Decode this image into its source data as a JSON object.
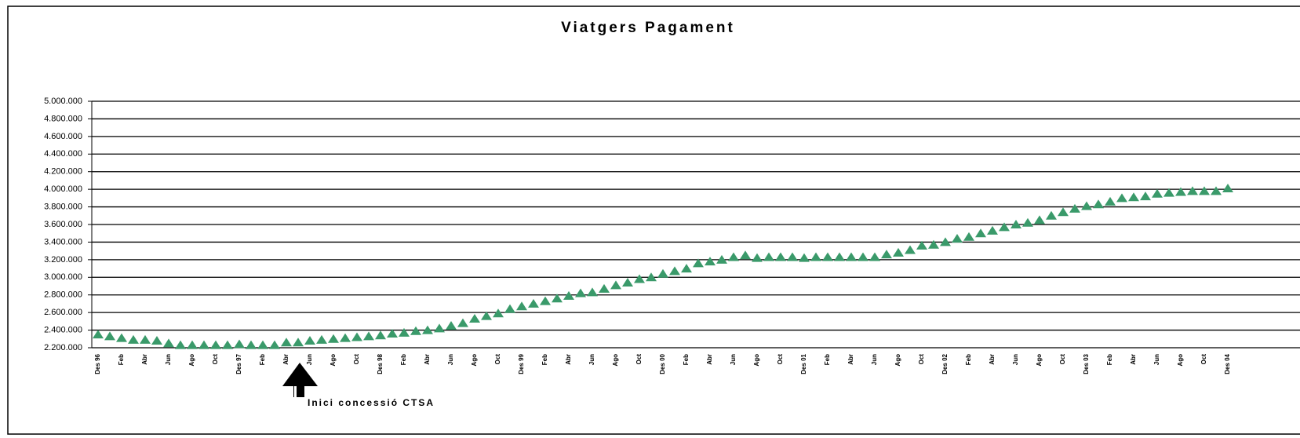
{
  "chart_data": {
    "type": "scatter",
    "title": "Viatgers Pagament",
    "marker": "triangle",
    "color": "#3a9a6a",
    "categories": [
      "Des 96",
      null,
      "Feb",
      null,
      "Abr",
      null,
      "Jun",
      null,
      "Ago",
      null,
      "Oct",
      null,
      "Des 97",
      null,
      "Feb",
      null,
      "Abr",
      null,
      "Jun",
      null,
      "Ago",
      null,
      "Oct",
      null,
      "Des 98",
      null,
      "Feb",
      null,
      "Abr",
      null,
      "Jun",
      null,
      "Ago",
      null,
      "Oct",
      null,
      "Des 99",
      null,
      "Feb",
      null,
      "Abr",
      null,
      "Jun",
      null,
      "Ago",
      null,
      "Oct",
      null,
      "Des 00",
      null,
      "Feb",
      null,
      "Abr",
      null,
      "Jun",
      null,
      "Ago",
      null,
      "Oct",
      null,
      "Des 01",
      null,
      "Feb",
      null,
      "Abr",
      null,
      "Jun",
      null,
      "Ago",
      null,
      "Oct",
      null,
      "Des 02",
      null,
      "Feb",
      null,
      "Abr",
      null,
      "Jun",
      null,
      "Ago",
      null,
      "Oct",
      null,
      "Des 03",
      null,
      "Feb",
      null,
      "Abr",
      null,
      "Jun",
      null,
      "Ago",
      null,
      "Oct",
      null,
      "Des 04"
    ],
    "values": [
      2350000,
      2330000,
      2310000,
      2290000,
      2290000,
      2280000,
      2250000,
      2230000,
      2230000,
      2230000,
      2230000,
      2230000,
      2240000,
      2230000,
      2230000,
      2230000,
      2260000,
      2260000,
      2280000,
      2290000,
      2300000,
      2310000,
      2320000,
      2330000,
      2340000,
      2360000,
      2370000,
      2390000,
      2400000,
      2420000,
      2450000,
      2480000,
      2530000,
      2560000,
      2590000,
      2640000,
      2670000,
      2700000,
      2730000,
      2760000,
      2790000,
      2820000,
      2830000,
      2870000,
      2910000,
      2940000,
      2980000,
      3000000,
      3040000,
      3070000,
      3100000,
      3160000,
      3180000,
      3200000,
      3230000,
      3250000,
      3220000,
      3230000,
      3230000,
      3230000,
      3220000,
      3230000,
      3230000,
      3230000,
      3230000,
      3230000,
      3230000,
      3260000,
      3280000,
      3310000,
      3360000,
      3370000,
      3400000,
      3440000,
      3460000,
      3500000,
      3530000,
      3570000,
      3600000,
      3620000,
      3650000,
      3700000,
      3740000,
      3780000,
      3810000,
      3830000,
      3860000,
      3900000,
      3910000,
      3920000,
      3950000,
      3960000,
      3970000,
      3980000,
      3980000,
      3980000,
      4010000
    ],
    "ylim": [
      2200000,
      5000000
    ],
    "yticks": [
      {
        "value": 2200000,
        "label": "2.200.000"
      },
      {
        "value": 2400000,
        "label": "2.400.000"
      },
      {
        "value": 2600000,
        "label": "2.600.000"
      },
      {
        "value": 2800000,
        "label": "2.800.000"
      },
      {
        "value": 3000000,
        "label": "3.000.000"
      },
      {
        "value": 3200000,
        "label": "3.200.000"
      },
      {
        "value": 3400000,
        "label": "3.400.000"
      },
      {
        "value": 3600000,
        "label": "3.600.000"
      },
      {
        "value": 3800000,
        "label": "3.800.000"
      },
      {
        "value": 4000000,
        "label": "4.000.000"
      },
      {
        "value": 4200000,
        "label": "4.200.000"
      },
      {
        "value": 4400000,
        "label": "4.400.000"
      },
      {
        "value": 4600000,
        "label": "4.600.000"
      },
      {
        "value": 4800000,
        "label": "4.800.000"
      },
      {
        "value": 5000000,
        "label": "5.000.000"
      }
    ],
    "grid": true,
    "annotation": "Inici concessió CTSA"
  }
}
